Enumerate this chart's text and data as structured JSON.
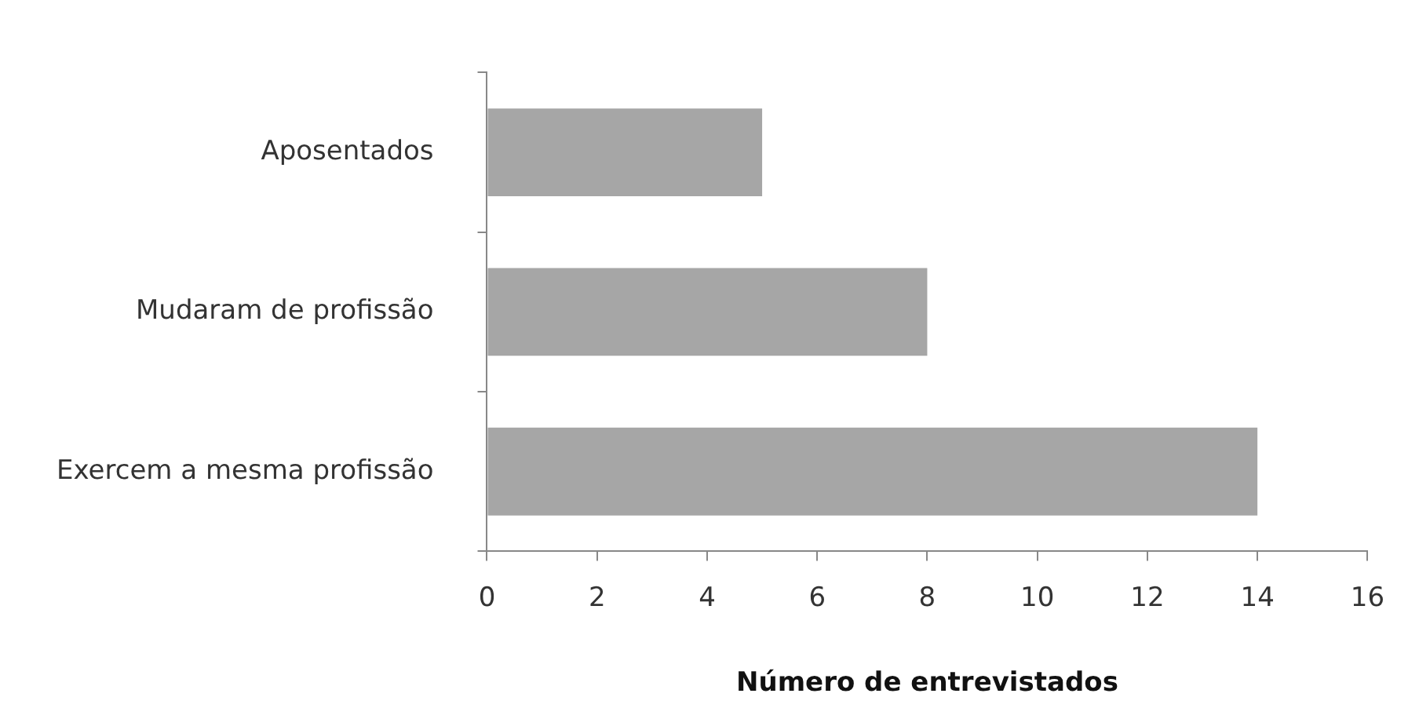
{
  "chart_data": {
    "type": "bar",
    "orientation": "horizontal",
    "xlabel": "Número de entrevistados",
    "categories": [
      "Aposentados",
      "Mudaram de profissão",
      "Exercem a mesma profissão"
    ],
    "values": [
      5,
      8,
      14
    ],
    "color": "#a6a6a6",
    "xlim": [
      0,
      16
    ],
    "xticks": [
      0,
      2,
      4,
      6,
      8,
      10,
      12,
      14,
      16
    ],
    "grid": false,
    "legend": false
  }
}
